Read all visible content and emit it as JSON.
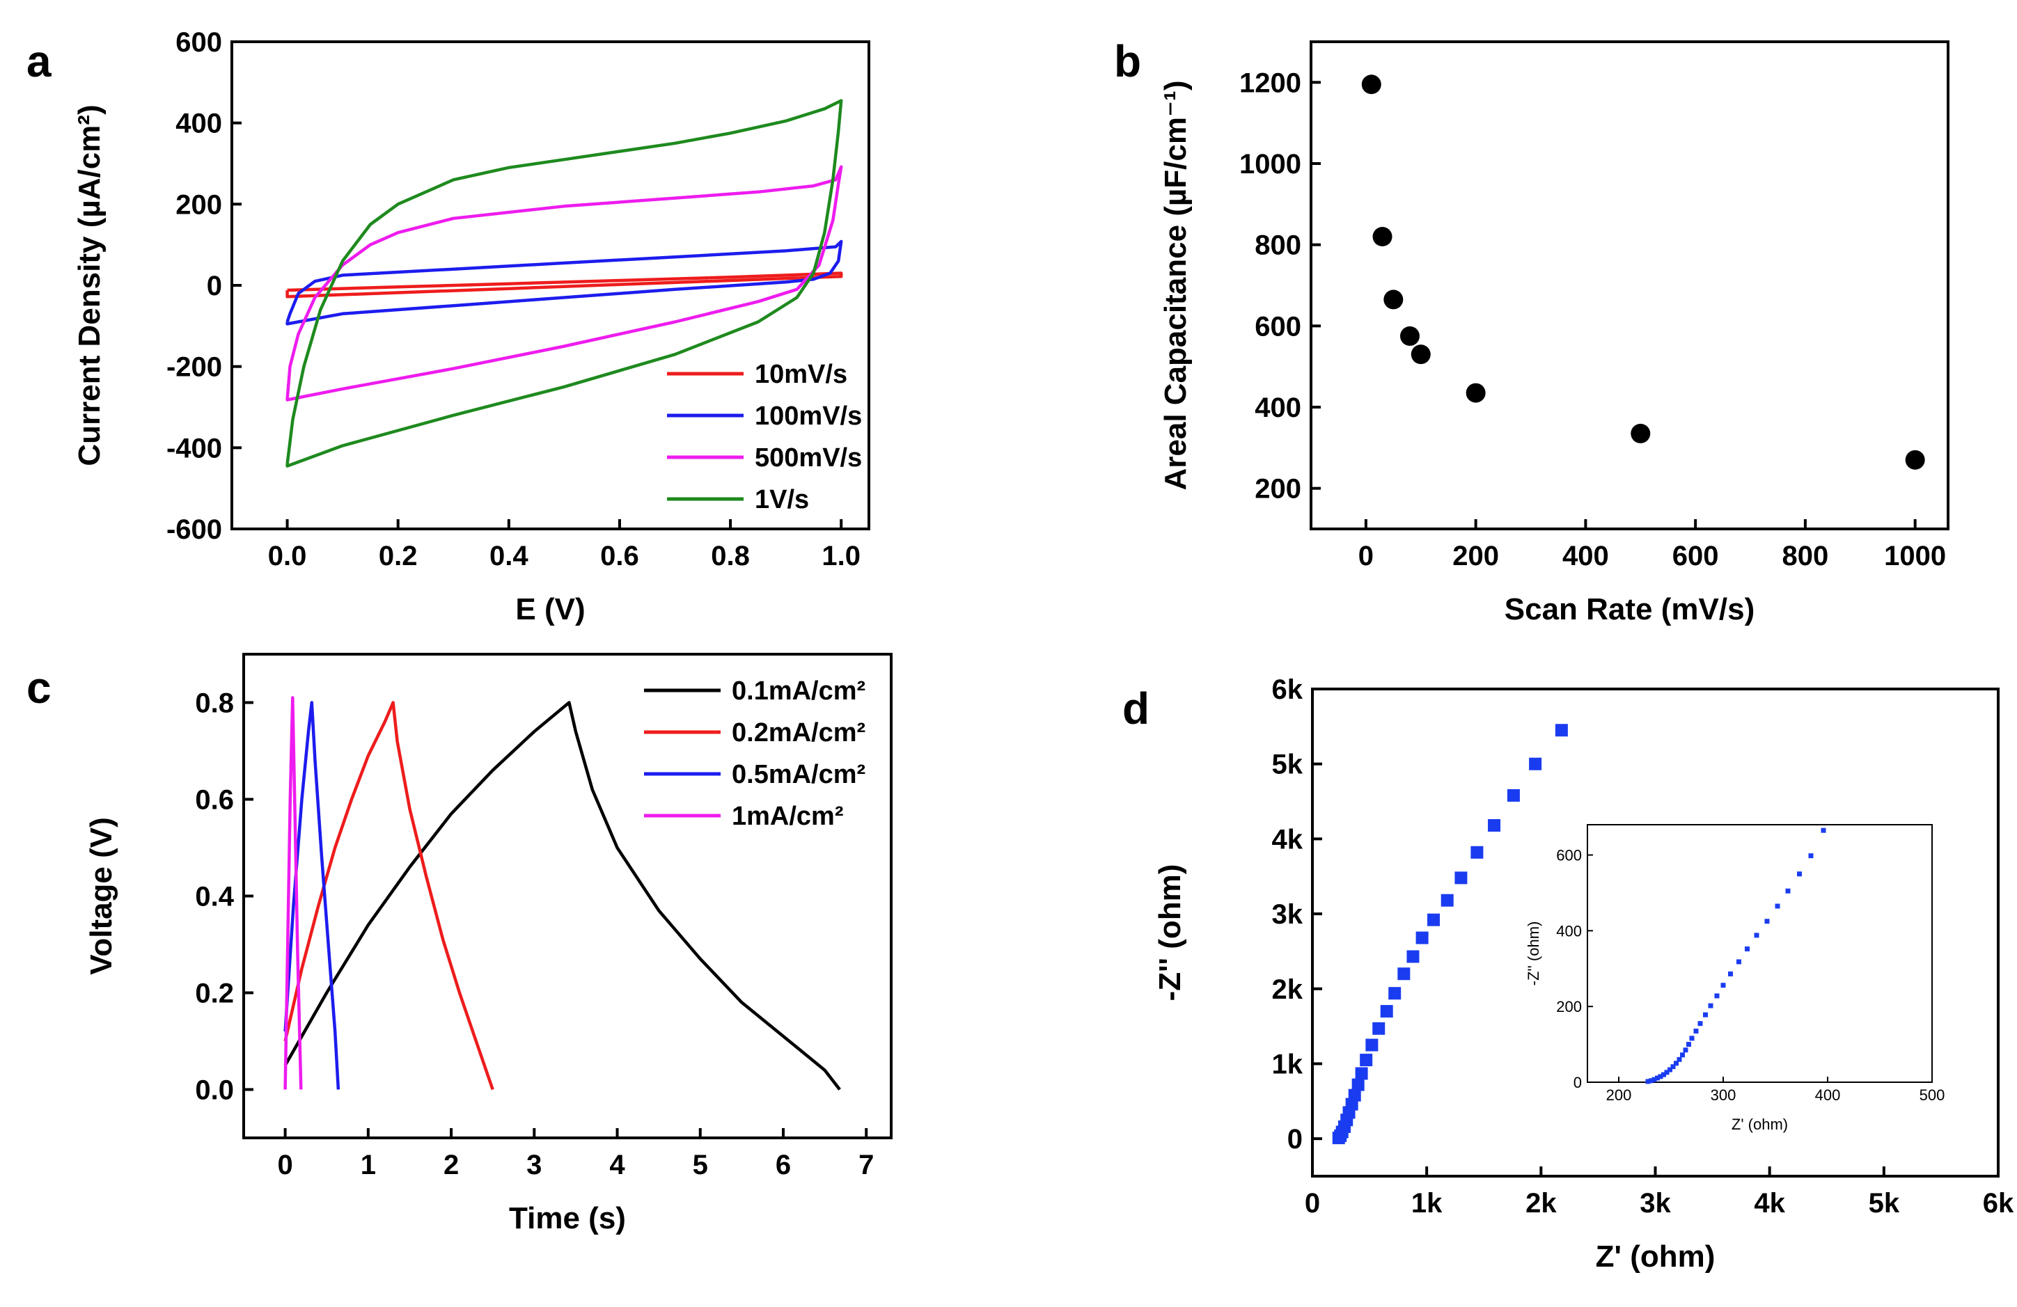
{
  "figure": {
    "colors": {
      "red": "#ee1c1c",
      "blue": "#1c1cee",
      "magenta": "#ee1cee",
      "green": "#1e8a1e",
      "black": "#000000",
      "eis_blue": "#1a3cf0"
    }
  },
  "chart_data": [
    {
      "panel": "a",
      "type": "line",
      "title": "",
      "xlabel": "E (V)",
      "ylabel": "Current Density (µA/cm²)",
      "xlim": [
        -0.1,
        1.05
      ],
      "ylim": [
        -600,
        600
      ],
      "xticks": [
        0.0,
        0.2,
        0.4,
        0.6,
        0.8,
        1.0
      ],
      "xtick_labels": [
        "0.0",
        "0.2",
        "0.4",
        "0.6",
        "0.8",
        "1.0"
      ],
      "yticks": [
        -600,
        -400,
        -200,
        0,
        200,
        400,
        600
      ],
      "ytick_labels": [
        "-600",
        "-400",
        "-200",
        "0",
        "200",
        "400",
        "600"
      ],
      "legend_position": "bottom-right",
      "series": [
        {
          "name": "10mV/s",
          "color": "#ee1c1c",
          "upper": [
            [
              0.0,
              -12
            ],
            [
              0.2,
              -4
            ],
            [
              0.4,
              4
            ],
            [
              0.6,
              12
            ],
            [
              0.8,
              20
            ],
            [
              1.0,
              30
            ]
          ],
          "lower": [
            [
              1.0,
              22
            ],
            [
              0.8,
              12
            ],
            [
              0.6,
              2
            ],
            [
              0.4,
              -8
            ],
            [
              0.2,
              -18
            ],
            [
              0.0,
              -28
            ]
          ]
        },
        {
          "name": "100mV/s",
          "color": "#1c1cee",
          "upper": [
            [
              0.0,
              -90
            ],
            [
              0.005,
              -70
            ],
            [
              0.02,
              -20
            ],
            [
              0.05,
              10
            ],
            [
              0.1,
              25
            ],
            [
              0.3,
              40
            ],
            [
              0.5,
              55
            ],
            [
              0.7,
              70
            ],
            [
              0.9,
              85
            ],
            [
              0.99,
              95
            ],
            [
              1.0,
              108
            ]
          ],
          "lower": [
            [
              1.0,
              108
            ],
            [
              0.995,
              60
            ],
            [
              0.98,
              30
            ],
            [
              0.95,
              15
            ],
            [
              0.9,
              8
            ],
            [
              0.7,
              -10
            ],
            [
              0.5,
              -30
            ],
            [
              0.3,
              -50
            ],
            [
              0.1,
              -70
            ],
            [
              0.0,
              -95
            ]
          ]
        },
        {
          "name": "500mV/s",
          "color": "#ee1cee",
          "upper": [
            [
              0.0,
              -280
            ],
            [
              0.005,
              -200
            ],
            [
              0.02,
              -120
            ],
            [
              0.05,
              -30
            ],
            [
              0.1,
              50
            ],
            [
              0.15,
              100
            ],
            [
              0.2,
              130
            ],
            [
              0.3,
              165
            ],
            [
              0.5,
              195
            ],
            [
              0.7,
              215
            ],
            [
              0.85,
              230
            ],
            [
              0.95,
              245
            ],
            [
              0.99,
              260
            ],
            [
              1.0,
              292
            ]
          ],
          "lower": [
            [
              1.0,
              292
            ],
            [
              0.995,
              250
            ],
            [
              0.985,
              160
            ],
            [
              0.96,
              50
            ],
            [
              0.92,
              -10
            ],
            [
              0.85,
              -40
            ],
            [
              0.7,
              -90
            ],
            [
              0.5,
              -150
            ],
            [
              0.3,
              -205
            ],
            [
              0.1,
              -255
            ],
            [
              0.0,
              -282
            ]
          ]
        },
        {
          "name": "1V/s",
          "color": "#1e8a1e",
          "upper": [
            [
              0.0,
              -440
            ],
            [
              0.01,
              -330
            ],
            [
              0.03,
              -200
            ],
            [
              0.06,
              -60
            ],
            [
              0.1,
              60
            ],
            [
              0.15,
              150
            ],
            [
              0.2,
              200
            ],
            [
              0.3,
              260
            ],
            [
              0.4,
              290
            ],
            [
              0.5,
              310
            ],
            [
              0.6,
              330
            ],
            [
              0.7,
              350
            ],
            [
              0.8,
              375
            ],
            [
              0.9,
              405
            ],
            [
              0.97,
              435
            ],
            [
              1.0,
              455
            ]
          ],
          "lower": [
            [
              1.0,
              455
            ],
            [
              0.995,
              380
            ],
            [
              0.985,
              260
            ],
            [
              0.97,
              130
            ],
            [
              0.95,
              30
            ],
            [
              0.92,
              -30
            ],
            [
              0.85,
              -90
            ],
            [
              0.7,
              -170
            ],
            [
              0.5,
              -250
            ],
            [
              0.3,
              -320
            ],
            [
              0.1,
              -395
            ],
            [
              0.0,
              -445
            ]
          ]
        }
      ]
    },
    {
      "panel": "b",
      "type": "scatter",
      "title": "",
      "xlabel": "Scan Rate (mV/s)",
      "ylabel": "Areal Capacitance (µF/cm⁻¹)",
      "xlim": [
        -100,
        1060
      ],
      "ylim": [
        100,
        1300
      ],
      "xticks": [
        0,
        200,
        400,
        600,
        800,
        1000
      ],
      "xtick_labels": [
        "0",
        "200",
        "400",
        "600",
        "800",
        "1000"
      ],
      "yticks": [
        200,
        400,
        600,
        800,
        1000,
        1200
      ],
      "ytick_labels": [
        "200",
        "400",
        "600",
        "800",
        "1000",
        "1200"
      ],
      "x": [
        10,
        30,
        50,
        80,
        100,
        200,
        500,
        1000
      ],
      "y": [
        1195,
        820,
        665,
        575,
        530,
        435,
        335,
        270
      ],
      "color": "#000000"
    },
    {
      "panel": "c",
      "type": "line",
      "title": "",
      "xlabel": "Time (s)",
      "ylabel": "Voltage (V)",
      "xlim": [
        -0.5,
        7.3
      ],
      "ylim": [
        -0.1,
        0.9
      ],
      "xticks": [
        0,
        1,
        2,
        3,
        4,
        5,
        6,
        7
      ],
      "xtick_labels": [
        "0",
        "1",
        "2",
        "3",
        "4",
        "5",
        "6",
        "7"
      ],
      "yticks": [
        0.0,
        0.2,
        0.4,
        0.6,
        0.8
      ],
      "ytick_labels": [
        "0.0",
        "0.2",
        "0.4",
        "0.6",
        "0.8"
      ],
      "legend_position": "top-right",
      "series": [
        {
          "name": "0.1mA/cm²",
          "color": "#000000",
          "points": [
            [
              0,
              0.05
            ],
            [
              0.5,
              0.2
            ],
            [
              1,
              0.34
            ],
            [
              1.5,
              0.46
            ],
            [
              2,
              0.57
            ],
            [
              2.5,
              0.66
            ],
            [
              3,
              0.74
            ],
            [
              3.42,
              0.8
            ],
            [
              3.5,
              0.74
            ],
            [
              3.7,
              0.62
            ],
            [
              4,
              0.5
            ],
            [
              4.5,
              0.37
            ],
            [
              5,
              0.27
            ],
            [
              5.5,
              0.18
            ],
            [
              6,
              0.11
            ],
            [
              6.5,
              0.04
            ],
            [
              6.68,
              0.0
            ]
          ]
        },
        {
          "name": "0.2mA/cm²",
          "color": "#ee1c1c",
          "points": [
            [
              0,
              0.1
            ],
            [
              0.2,
              0.25
            ],
            [
              0.4,
              0.38
            ],
            [
              0.6,
              0.5
            ],
            [
              0.8,
              0.6
            ],
            [
              1.0,
              0.69
            ],
            [
              1.2,
              0.76
            ],
            [
              1.3,
              0.8
            ],
            [
              1.35,
              0.72
            ],
            [
              1.5,
              0.58
            ],
            [
              1.7,
              0.44
            ],
            [
              1.9,
              0.31
            ],
            [
              2.1,
              0.2
            ],
            [
              2.3,
              0.1
            ],
            [
              2.5,
              0.0
            ]
          ]
        },
        {
          "name": "0.5mA/cm²",
          "color": "#1c1cee",
          "points": [
            [
              0,
              0.12
            ],
            [
              0.1,
              0.38
            ],
            [
              0.2,
              0.6
            ],
            [
              0.28,
              0.74
            ],
            [
              0.32,
              0.8
            ],
            [
              0.36,
              0.68
            ],
            [
              0.44,
              0.48
            ],
            [
              0.52,
              0.3
            ],
            [
              0.6,
              0.12
            ],
            [
              0.64,
              0.0
            ]
          ]
        },
        {
          "name": "1mA/cm²",
          "color": "#ee1cee",
          "points": [
            [
              0,
              0.0
            ],
            [
              0.03,
              0.3
            ],
            [
              0.06,
              0.6
            ],
            [
              0.09,
              0.81
            ],
            [
              0.12,
              0.55
            ],
            [
              0.15,
              0.28
            ],
            [
              0.19,
              0.0
            ]
          ]
        }
      ]
    },
    {
      "panel": "d",
      "type": "scatter",
      "title": "",
      "xlabel": "Z' (ohm)",
      "ylabel": "-Z'' (ohm)",
      "xlim": [
        0,
        6000
      ],
      "ylim": [
        -500,
        6000
      ],
      "xticks": [
        0,
        1000,
        2000,
        3000,
        4000,
        5000,
        6000
      ],
      "xtick_labels": [
        "0",
        "1k",
        "2k",
        "3k",
        "4k",
        "5k",
        "6k"
      ],
      "yticks": [
        0,
        1000,
        2000,
        3000,
        4000,
        5000,
        6000
      ],
      "ytick_labels": [
        "0",
        "1k",
        "2k",
        "3k",
        "4k",
        "5k",
        "6k"
      ],
      "color": "#1a3cf0",
      "x": [
        230,
        245,
        260,
        280,
        300,
        320,
        345,
        370,
        400,
        430,
        470,
        520,
        580,
        650,
        720,
        800,
        880,
        960,
        1060,
        1180,
        1300,
        1440,
        1590,
        1760,
        1950,
        2180
      ],
      "y": [
        10,
        40,
        90,
        160,
        250,
        350,
        460,
        580,
        720,
        870,
        1050,
        1250,
        1470,
        1700,
        1940,
        2200,
        2430,
        2680,
        2920,
        3180,
        3480,
        3820,
        4180,
        4580,
        5000,
        5450
      ],
      "inset": {
        "xlabel": "Z' (ohm)",
        "ylabel": "-Z'' (ohm)",
        "xlim": [
          170,
          500
        ],
        "ylim": [
          0,
          680
        ],
        "xticks": [
          200,
          300,
          400,
          500
        ],
        "xtick_labels": [
          "200",
          "300",
          "400",
          "500"
        ],
        "yticks": [
          0,
          200,
          400,
          600
        ],
        "ytick_labels": [
          "0",
          "200",
          "400",
          "600"
        ],
        "x": [
          228,
          231,
          234,
          237,
          240,
          243,
          246,
          249,
          252,
          255,
          258,
          261,
          264,
          267,
          270,
          274,
          278,
          283,
          288,
          294,
          300,
          307,
          315,
          323,
          332,
          342,
          352,
          362,
          373,
          384,
          396
        ],
        "y": [
          2,
          4,
          7,
          11,
          15,
          20,
          26,
          33,
          41,
          50,
          60,
          72,
          85,
          100,
          116,
          135,
          155,
          178,
          202,
          228,
          256,
          286,
          318,
          352,
          388,
          425,
          465,
          505,
          550,
          598,
          665
        ]
      }
    }
  ]
}
